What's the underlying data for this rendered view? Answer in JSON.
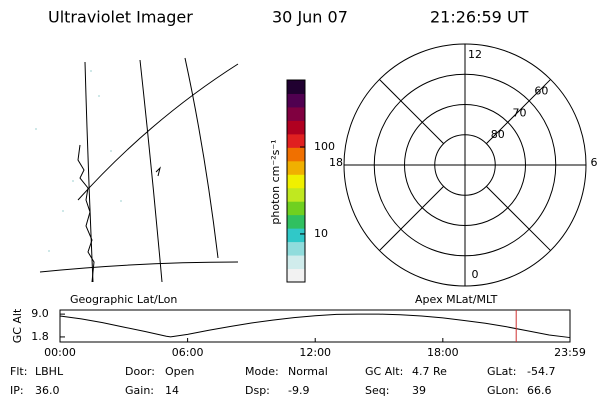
{
  "header": {
    "instrument": "Ultraviolet Imager",
    "date": "30 Jun 07",
    "time": "21:26:59 UT"
  },
  "colorbar": {
    "label": "photon cm⁻²s⁻¹",
    "log": true,
    "clim": [
      2.8,
      590
    ],
    "ticks": [
      10,
      100
    ],
    "colormap": [
      "#f2f2f2",
      "#d0ecec",
      "#90dcdc",
      "#30c8c8",
      "#30c060",
      "#70d020",
      "#c0e820",
      "#f0f000",
      "#f0b000",
      "#f07000",
      "#e02020",
      "#b00020",
      "#800040",
      "#500050",
      "#200030"
    ]
  },
  "map": {
    "title": "Geographic Lat/Lon"
  },
  "polar": {
    "title": "Apex MLat/MLT",
    "lat_min": 50,
    "lat_rings": [
      80,
      70,
      60
    ],
    "mlt_hours": [
      12,
      18,
      6,
      0
    ]
  },
  "chart_data": {
    "type": "line",
    "ylabel": "GC Alt",
    "x": [
      0,
      1,
      2,
      3,
      4,
      5,
      5.2,
      6,
      7,
      8,
      9,
      10,
      11,
      12,
      13,
      14,
      15,
      16,
      17,
      18,
      19,
      20,
      21,
      22,
      23,
      23.98
    ],
    "values": [
      8.4,
      7.5,
      6.3,
      4.9,
      3.5,
      2.0,
      1.8,
      2.6,
      3.9,
      5.1,
      6.2,
      7.1,
      7.9,
      8.5,
      8.9,
      9.0,
      9.0,
      8.8,
      8.4,
      7.8,
      7.0,
      6.1,
      5.0,
      3.7,
      2.4,
      1.6
    ],
    "color": "#000000",
    "marker_time": 21.45,
    "marker_color": "#d03030",
    "xlim": [
      0,
      23.98
    ],
    "ylim": [
      0.2,
      10.3
    ],
    "xticks": [
      {
        "value": 0,
        "label": "00:00"
      },
      {
        "value": 6,
        "label": "06:00"
      },
      {
        "value": 12,
        "label": "12:00"
      },
      {
        "value": 18,
        "label": "18:00"
      },
      {
        "value": 23.98,
        "label": "23:59"
      }
    ],
    "yticks": [
      {
        "value": 9.0,
        "label": "9.0"
      },
      {
        "value": 1.8,
        "label": "1.8"
      }
    ]
  },
  "footer": [
    [
      {
        "label": "Flt:",
        "value": "LBHL"
      },
      {
        "label": "Door:",
        "value": "Open"
      },
      {
        "label": "Mode:",
        "value": "Normal"
      },
      {
        "label": "GC Alt:",
        "value": "4.7 Re"
      },
      {
        "label": "GLat:",
        "value": "-54.7"
      }
    ],
    [
      {
        "label": "IP:",
        "value": "36.0"
      },
      {
        "label": "Gain:",
        "value": "14"
      },
      {
        "label": "Dsp:",
        "value": "-9.9"
      },
      {
        "label": "Seq:",
        "value": "39"
      },
      {
        "label": "GLon:",
        "value": "66.6"
      }
    ]
  ]
}
